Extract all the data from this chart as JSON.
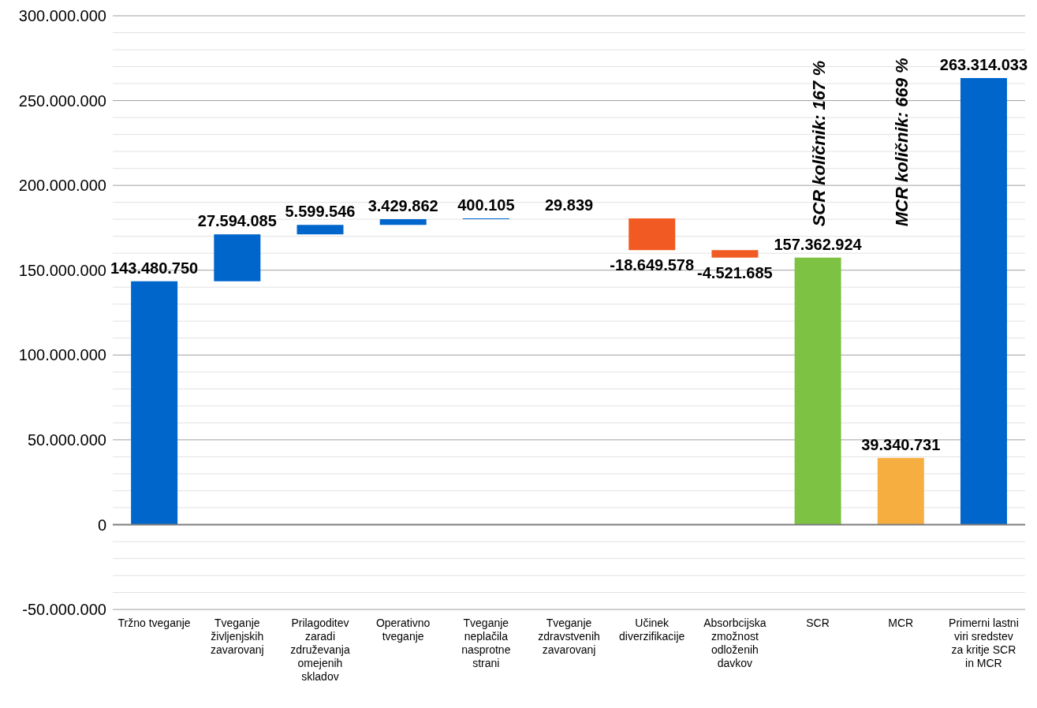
{
  "chart_data": {
    "type": "bar",
    "categories": [
      "Tržno tveganje",
      "Tveganje življenjskih zavarovanj",
      "Prilagoditev zaradi združevanja omejenih skladov",
      "Operativno tveganje",
      "Tveganje neplačila nasprotne strani",
      "Tveganje zdravstvenih zavarovanj",
      "Učinek diverzifikacije",
      "Absorbcijska zmožnost odloženih davkov",
      "SCR",
      "MCR",
      "Primerni lastni viri sredstev za kritje SCR in MCR"
    ],
    "values": [
      143480750,
      27594085,
      5599546,
      3429862,
      400105,
      29839,
      -18649578,
      -4521685,
      157362924,
      39340731,
      263314033
    ],
    "base": [
      0,
      143480750,
      171074835,
      176674381,
      180104243,
      180504348,
      180534187,
      161884609,
      0,
      0,
      0
    ],
    "colors": [
      "#0066cc",
      "#0066cc",
      "#0066cc",
      "#0066cc",
      "#0066cc",
      "#0066cc",
      "#f15a22",
      "#f15a22",
      "#7dc242",
      "#f6ae40",
      "#0066cc"
    ],
    "value_labels": [
      "143.480.750",
      "27.594.085",
      "5.599.546",
      "3.429.862",
      "400.105",
      "29.839",
      "-18.649.578",
      "-4.521.685",
      "157.362.924",
      "39.340.731",
      "263.314.033"
    ],
    "annotations": [
      "SCR količnik: 167 %",
      "MCR količnik: 669 %"
    ],
    "ylim": [
      -50000000,
      300000000
    ],
    "yticks": [
      {
        "value": -50000000,
        "label": "-50.000.000"
      },
      {
        "value": -40000000,
        "label": null
      },
      {
        "value": -30000000,
        "label": null
      },
      {
        "value": -20000000,
        "label": null
      },
      {
        "value": -10000000,
        "label": null
      },
      {
        "value": 0,
        "label": "0"
      },
      {
        "value": 10000000,
        "label": null
      },
      {
        "value": 20000000,
        "label": null
      },
      {
        "value": 30000000,
        "label": null
      },
      {
        "value": 40000000,
        "label": null
      },
      {
        "value": 50000000,
        "label": "50.000.000"
      },
      {
        "value": 60000000,
        "label": null
      },
      {
        "value": 70000000,
        "label": null
      },
      {
        "value": 80000000,
        "label": null
      },
      {
        "value": 90000000,
        "label": null
      },
      {
        "value": 100000000,
        "label": "100.000.000"
      },
      {
        "value": 110000000,
        "label": null
      },
      {
        "value": 120000000,
        "label": null
      },
      {
        "value": 130000000,
        "label": null
      },
      {
        "value": 140000000,
        "label": null
      },
      {
        "value": 150000000,
        "label": "150.000.000"
      },
      {
        "value": 160000000,
        "label": null
      },
      {
        "value": 170000000,
        "label": null
      },
      {
        "value": 180000000,
        "label": null
      },
      {
        "value": 190000000,
        "label": null
      },
      {
        "value": 200000000,
        "label": "200.000.000"
      },
      {
        "value": 210000000,
        "label": null
      },
      {
        "value": 220000000,
        "label": null
      },
      {
        "value": 230000000,
        "label": null
      },
      {
        "value": 240000000,
        "label": null
      },
      {
        "value": 250000000,
        "label": "250.000.000"
      },
      {
        "value": 260000000,
        "label": null
      },
      {
        "value": 270000000,
        "label": null
      },
      {
        "value": 280000000,
        "label": null
      },
      {
        "value": 290000000,
        "label": null
      },
      {
        "value": 300000000,
        "label": "300.000.000"
      }
    ],
    "grid": "y",
    "ref_lines": [
      {
        "axis": "y",
        "value": 0,
        "color": "#808080"
      }
    ]
  }
}
